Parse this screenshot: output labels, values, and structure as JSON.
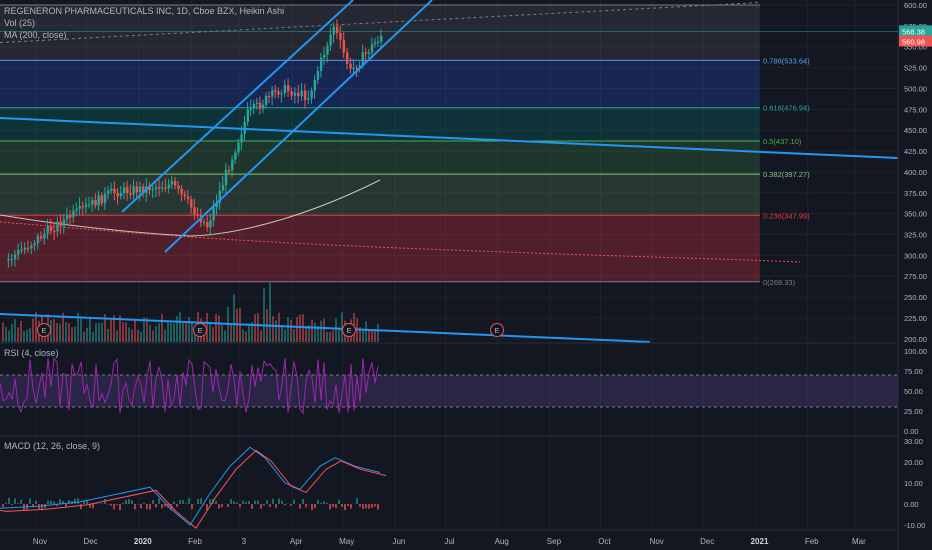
{
  "header": {
    "symbol_line": "REGENERON PHARMACEUTICALS INC, 1D, Cboe BZX, Heikin Ashi",
    "vol_line": "Vol (25)",
    "ma_line": "MA (200, close)"
  },
  "rsi_panel": {
    "label": "RSI (4, close)"
  },
  "macd_panel": {
    "label": "MACD (12, 26, close, 9)"
  },
  "price_axis": {
    "ticks": [
      "600.00",
      "575.00",
      "550.00",
      "525.00",
      "500.00",
      "475.00",
      "450.00",
      "425.00",
      "400.00",
      "375.00",
      "350.00",
      "325.00",
      "300.00",
      "275.00",
      "250.00",
      "225.00",
      "200.00"
    ],
    "last_price": "568.38",
    "ma_price": "560.98"
  },
  "rsi_axis": {
    "ticks": [
      "100.00",
      "75.00",
      "50.00",
      "25.00",
      "0.00"
    ]
  },
  "macd_axis": {
    "ticks": [
      "30.00",
      "20.00",
      "10.00",
      "0.00",
      "-10.00"
    ]
  },
  "time_axis": {
    "labels": [
      "Nov",
      "Dec",
      "2020",
      "Feb",
      "3",
      "Apr",
      "May",
      "Jun",
      "Jul",
      "Aug",
      "Sep",
      "Oct",
      "Nov",
      "Dec",
      "2021",
      "Feb",
      "Mar"
    ],
    "bold": [
      "2020",
      "2021"
    ]
  },
  "fib_levels": [
    {
      "ratio": "0.786",
      "price": "533.64",
      "label": "0.786(533.64)",
      "color": "#5b9cf6"
    },
    {
      "ratio": "0.618",
      "price": "476.94",
      "label": "0.618(476.94)",
      "color": "#26a69a"
    },
    {
      "ratio": "0.5",
      "price": "437.10",
      "label": "0.5(437.10)",
      "color": "#4caf50"
    },
    {
      "ratio": "0.382",
      "price": "397.27",
      "label": "0.382(397.27)",
      "color": "#81c784"
    },
    {
      "ratio": "0.236",
      "price": "347.99",
      "label": "0.236(347.99)",
      "color": "#f23645"
    },
    {
      "ratio": "0",
      "price": "268.33",
      "label": "0(268.33)",
      "color": "#787b86"
    }
  ],
  "earnings_markers": [
    "E",
    "E",
    "E",
    "E"
  ],
  "colors": {
    "background": "#131722",
    "up": "#26a69a",
    "down": "#ef5350",
    "trendline": "#2196f3",
    "ma": "#d1c4b0",
    "rsi": "#9c27b0",
    "macd": "#2196f3",
    "signal": "#ff5252"
  },
  "chart_data": {
    "type": "candlestick",
    "symbol": "REGENERON PHARMACEUTICALS INC",
    "interval": "1D",
    "price_range": [
      195,
      605
    ],
    "approx_close_path": [
      {
        "date": "2019-10-15",
        "close": 295
      },
      {
        "date": "2019-11-15",
        "close": 340
      },
      {
        "date": "2019-12-15",
        "close": 375
      },
      {
        "date": "2020-01-20",
        "close": 385
      },
      {
        "date": "2020-02-10",
        "close": 335
      },
      {
        "date": "2020-03-05",
        "close": 470
      },
      {
        "date": "2020-03-25",
        "close": 500
      },
      {
        "date": "2020-04-10",
        "close": 490
      },
      {
        "date": "2020-04-25",
        "close": 575
      },
      {
        "date": "2020-05-05",
        "close": 520
      },
      {
        "date": "2020-05-25",
        "close": 568
      }
    ],
    "last_close": 568.38,
    "ma200_last": 560.98,
    "rsi_range": [
      0,
      100
    ],
    "rsi_bands": [
      30,
      70
    ],
    "macd_range": [
      -12,
      32
    ]
  }
}
